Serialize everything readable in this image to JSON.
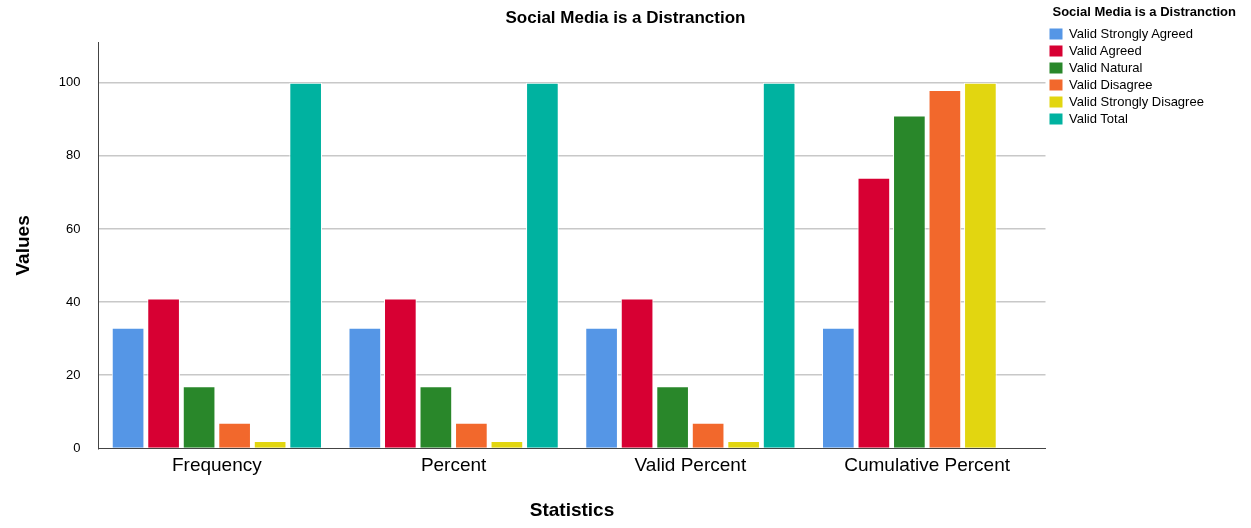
{
  "chart_data": {
    "type": "bar",
    "title": "Social Media is a Distranction",
    "xlabel": "Statistics",
    "ylabel": "Values",
    "legend_title": "Social Media is a Distranction",
    "categories": [
      "Frequency",
      "Percent",
      "Valid Percent",
      "Cumulative Percent"
    ],
    "series": [
      {
        "name": "Valid Strongly Agreed",
        "color": "#5596e6",
        "values": [
          33,
          33,
          33,
          33
        ]
      },
      {
        "name": "Valid Agreed",
        "color": "#d70033",
        "values": [
          41,
          41,
          41,
          74
        ]
      },
      {
        "name": "Valid Natural",
        "color": "#29872a",
        "values": [
          17,
          17,
          17,
          91
        ]
      },
      {
        "name": "Valid Disagree",
        "color": "#f2682c",
        "values": [
          7,
          7,
          7,
          98
        ]
      },
      {
        "name": "Valid Strongly Disagree",
        "color": "#e2d610",
        "values": [
          2,
          2,
          2,
          100
        ]
      },
      {
        "name": "Valid Total",
        "color": "#00b2a0",
        "values": [
          100,
          100,
          100,
          null
        ]
      }
    ],
    "ylim": [
      0,
      111
    ],
    "yticks": [
      0,
      20,
      40,
      60,
      80,
      100
    ],
    "grid": "y",
    "legend": "top right"
  }
}
